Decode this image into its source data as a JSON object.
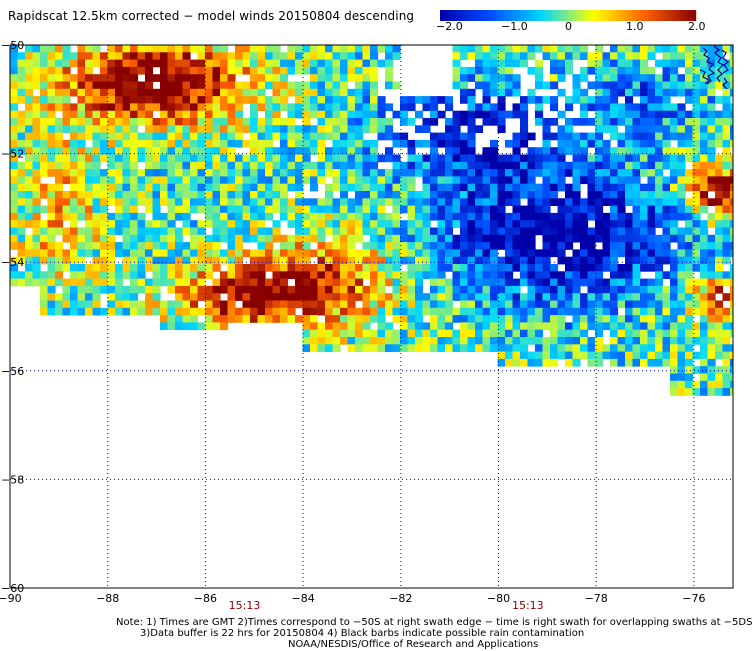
{
  "title": "Rapidscat 12.5km corrected − model winds 20150804 descending",
  "colorbar": {
    "ticks": [
      "−2.0",
      "−1.0",
      "0",
      "1.0",
      "2.0"
    ],
    "tick_values": [
      -2.0,
      -1.0,
      0,
      1.0,
      2.0
    ],
    "min": -2.0,
    "max": 2.0,
    "colors": [
      "#0000aa",
      "#0050ff",
      "#00d8ff",
      "#ffff00",
      "#ff6000",
      "#880000"
    ]
  },
  "map": {
    "lon_range": [
      -90,
      -75.2
    ],
    "lat_range": [
      -60,
      -50
    ],
    "x_ticks": [
      -90,
      -88,
      -86,
      -84,
      -82,
      -80,
      -78,
      -76
    ],
    "x_tick_labels": [
      "−90",
      "−88",
      "−86",
      "−84",
      "−82",
      "−80",
      "−78",
      "−76"
    ],
    "y_ticks": [
      -50,
      -52,
      -54,
      -56,
      -58,
      -60
    ],
    "y_tick_labels": [
      "−50",
      "−52",
      "−54",
      "−56",
      "−58",
      "−60"
    ],
    "grid": "dotted",
    "coastline_color": "#000080"
  },
  "swath_times": [
    {
      "lon": -85.2,
      "label": "15:13"
    },
    {
      "lon": -79.4,
      "label": "15:13"
    }
  ],
  "notes": [
    "Note: 1) Times are GMT 2)Times correspond to −50S at right swath edge − time is right swath for overlapping swaths at −5DS",
    "3)Data buffer is 22 hrs for 20150804 4) Black barbs indicate possible rain contamination",
    "NOAA/NESDIS/Office of Research and Applications"
  ]
}
